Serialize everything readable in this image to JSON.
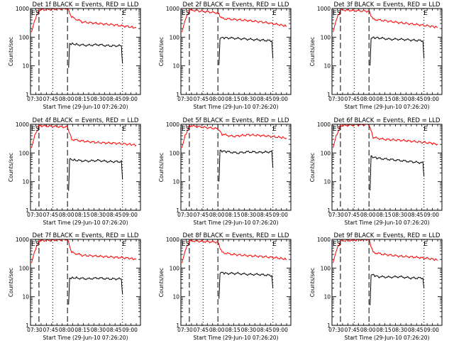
{
  "chart_data": [
    {
      "type": "line",
      "title": "Det 1f BLACK = Events, RED = LLD",
      "xlabel": "Start Time (29-Jun-10 07:26:20)",
      "ylabel": "Counts/sec",
      "y_scale": "log",
      "ylim": [
        1,
        1000
      ],
      "xlim": [
        "07:26",
        "09:10"
      ],
      "x_ticks": [
        "07:30",
        "07:45",
        "08:00",
        "08:15",
        "08:30",
        "08:45",
        "09:00"
      ],
      "y_ticks": [
        "1",
        "10",
        "100",
        "1000"
      ],
      "markers": [
        "E",
        "S",
        "E"
      ],
      "dashed_x": [
        "07:34",
        "08:01"
      ],
      "dotted_x": [
        "07:47",
        "08:53"
      ],
      "series": [
        {
          "color": "#ff0000",
          "x": [
            "07:27",
            "07:30",
            "07:33",
            "07:34",
            "08:01",
            "08:05",
            "08:15",
            "08:30",
            "08:45",
            "09:00",
            "09:06"
          ],
          "y": [
            150,
            400,
            700,
            900,
            1000,
            500,
            340,
            300,
            270,
            230,
            210
          ]
        },
        {
          "color": "#000000",
          "x": [
            "08:02",
            "08:03",
            "08:10",
            "08:20",
            "08:30",
            "08:40",
            "08:52",
            "08:53"
          ],
          "y": [
            8,
            60,
            55,
            52,
            55,
            50,
            50,
            12
          ]
        }
      ]
    },
    {
      "type": "line",
      "title": "Det 2f BLACK = Events, RED = LLD",
      "xlabel": "Start Time (29-Jun-10 07:26:20)",
      "ylabel": "Counts/sec",
      "y_scale": "log",
      "ylim": [
        1,
        1000
      ],
      "xlim": [
        "07:26",
        "09:10"
      ],
      "x_ticks": [
        "07:30",
        "07:45",
        "08:00",
        "08:15",
        "08:30",
        "08:45",
        "09:00"
      ],
      "y_ticks": [
        "1",
        "10",
        "100",
        "1000"
      ],
      "markers": [
        "E",
        "S",
        "E"
      ],
      "dashed_x": [
        "07:34",
        "08:01"
      ],
      "dotted_x": [
        "07:47",
        "08:53"
      ],
      "series": [
        {
          "color": "#ff0000",
          "x": [
            "07:27",
            "07:30",
            "07:33",
            "07:34",
            "08:01",
            "08:05",
            "08:15",
            "08:30",
            "08:45",
            "09:00",
            "09:06"
          ],
          "y": [
            150,
            400,
            700,
            900,
            700,
            450,
            420,
            380,
            330,
            270,
            240
          ]
        },
        {
          "color": "#000000",
          "x": [
            "08:02",
            "08:03",
            "08:10",
            "08:20",
            "08:30",
            "08:40",
            "08:52",
            "08:53"
          ],
          "y": [
            10,
            95,
            95,
            90,
            85,
            80,
            75,
            18
          ]
        }
      ]
    },
    {
      "type": "line",
      "title": "Det 3f BLACK = Events, RED = LLD",
      "xlabel": "Start Time (29-Jun-10 07:26:20)",
      "ylabel": "Counts/sec",
      "y_scale": "log",
      "ylim": [
        1,
        1000
      ],
      "xlim": [
        "07:26",
        "09:10"
      ],
      "x_ticks": [
        "07:30",
        "07:45",
        "08:00",
        "08:15",
        "08:30",
        "08:45",
        "09:00"
      ],
      "y_ticks": [
        "1",
        "10",
        "100",
        "1000"
      ],
      "markers": [
        "E",
        "S",
        "E"
      ],
      "dashed_x": [
        "07:34",
        "08:01"
      ],
      "dotted_x": [
        "07:47",
        "08:53"
      ],
      "series": [
        {
          "color": "#ff0000",
          "x": [
            "07:27",
            "07:30",
            "07:33",
            "07:34",
            "08:01",
            "08:05",
            "08:15",
            "08:30",
            "08:45",
            "09:00",
            "09:06"
          ],
          "y": [
            150,
            400,
            700,
            900,
            800,
            420,
            380,
            320,
            280,
            240,
            220
          ]
        },
        {
          "color": "#000000",
          "x": [
            "08:02",
            "08:03",
            "08:10",
            "08:20",
            "08:30",
            "08:40",
            "08:52",
            "08:53"
          ],
          "y": [
            10,
            95,
            95,
            85,
            85,
            80,
            75,
            18
          ]
        }
      ]
    },
    {
      "type": "line",
      "title": "Det 4f BLACK = Events, RED = LLD",
      "xlabel": "Start Time (29-Jun-10 07:26:20)",
      "ylabel": "Counts/sec",
      "y_scale": "log",
      "ylim": [
        1,
        1000
      ],
      "xlim": [
        "07:26",
        "09:10"
      ],
      "x_ticks": [
        "07:30",
        "07:45",
        "08:00",
        "08:15",
        "08:30",
        "08:45",
        "09:00"
      ],
      "y_ticks": [
        "1",
        "10",
        "100",
        "1000"
      ],
      "markers": [
        "E",
        "S",
        "E"
      ],
      "dashed_x": [
        "07:34",
        "08:01"
      ],
      "dotted_x": [
        "07:47",
        "08:53"
      ],
      "series": [
        {
          "color": "#ff0000",
          "x": [
            "07:27",
            "07:30",
            "07:33",
            "07:34",
            "08:01",
            "08:05",
            "08:15",
            "08:30",
            "08:45",
            "09:00",
            "09:06"
          ],
          "y": [
            150,
            400,
            700,
            900,
            800,
            300,
            260,
            230,
            220,
            200,
            190
          ]
        },
        {
          "color": "#000000",
          "x": [
            "08:02",
            "08:03",
            "08:10",
            "08:20",
            "08:30",
            "08:40",
            "08:52",
            "08:53"
          ],
          "y": [
            5,
            60,
            55,
            52,
            55,
            50,
            50,
            12
          ]
        }
      ]
    },
    {
      "type": "line",
      "title": "Det 5f BLACK = Events, RED = LLD",
      "xlabel": "Start Time (29-Jun-10 07:26:20)",
      "ylabel": "Counts/sec",
      "y_scale": "log",
      "ylim": [
        1,
        1000
      ],
      "xlim": [
        "07:26",
        "09:10"
      ],
      "x_ticks": [
        "07:30",
        "07:45",
        "08:00",
        "08:15",
        "08:30",
        "08:45",
        "09:00"
      ],
      "y_ticks": [
        "1",
        "10",
        "100",
        "1000"
      ],
      "markers": [
        "E",
        "S",
        "E"
      ],
      "dashed_x": [
        "07:34",
        "08:01"
      ],
      "dotted_x": [
        "07:47",
        "08:53"
      ],
      "series": [
        {
          "color": "#ff0000",
          "x": [
            "07:27",
            "07:30",
            "07:33",
            "07:34",
            "08:01",
            "08:05",
            "08:15",
            "08:30",
            "08:45",
            "09:00",
            "09:06"
          ],
          "y": [
            150,
            400,
            700,
            900,
            700,
            450,
            380,
            430,
            400,
            350,
            330
          ]
        },
        {
          "color": "#000000",
          "x": [
            "08:02",
            "08:03",
            "08:10",
            "08:20",
            "08:30",
            "08:40",
            "08:52",
            "08:53"
          ],
          "y": [
            10,
            120,
            110,
            100,
            110,
            105,
            110,
            30
          ]
        }
      ]
    },
    {
      "type": "line",
      "title": "Det 6f BLACK = Events, RED = LLD",
      "xlabel": "Start Time (29-Jun-10 07:26:20)",
      "ylabel": "Counts/sec",
      "y_scale": "log",
      "ylim": [
        1,
        1000
      ],
      "xlim": [
        "07:26",
        "09:10"
      ],
      "x_ticks": [
        "07:30",
        "07:45",
        "08:00",
        "08:15",
        "08:30",
        "08:45",
        "09:00"
      ],
      "y_ticks": [
        "1",
        "10",
        "100",
        "1000"
      ],
      "markers": [
        "E",
        "S",
        "E"
      ],
      "dashed_x": [
        "07:34",
        "08:01"
      ],
      "dotted_x": [
        "07:47",
        "08:53"
      ],
      "series": [
        {
          "color": "#ff0000",
          "x": [
            "07:27",
            "07:30",
            "07:33",
            "07:34",
            "08:01",
            "08:05",
            "08:15",
            "08:30",
            "08:45",
            "09:00",
            "09:06"
          ],
          "y": [
            150,
            400,
            700,
            900,
            1000,
            350,
            300,
            280,
            250,
            220,
            200
          ]
        },
        {
          "color": "#000000",
          "x": [
            "08:02",
            "08:03",
            "08:10",
            "08:20",
            "08:30",
            "08:40",
            "08:52",
            "08:53"
          ],
          "y": [
            5,
            75,
            65,
            60,
            55,
            50,
            45,
            15
          ]
        }
      ]
    },
    {
      "type": "line",
      "title": "Det 7f BLACK = Events, RED = LLD",
      "xlabel": "Start Time (29-Jun-10 07:26:20)",
      "ylabel": "Counts/sec",
      "y_scale": "log",
      "ylim": [
        1,
        1000
      ],
      "xlim": [
        "07:26",
        "09:10"
      ],
      "x_ticks": [
        "07:30",
        "07:45",
        "08:00",
        "08:15",
        "08:30",
        "08:45",
        "09:00"
      ],
      "y_ticks": [
        "1",
        "10",
        "100",
        "1000"
      ],
      "markers": [
        "E",
        "S",
        "E"
      ],
      "dashed_x": [
        "07:34",
        "08:01"
      ],
      "dotted_x": [
        "07:47",
        "08:53"
      ],
      "series": [
        {
          "color": "#ff0000",
          "x": [
            "07:27",
            "07:30",
            "07:33",
            "07:34",
            "08:01",
            "08:05",
            "08:15",
            "08:30",
            "08:45",
            "09:00",
            "09:06"
          ],
          "y": [
            150,
            400,
            700,
            900,
            1000,
            350,
            280,
            260,
            240,
            220,
            200
          ]
        },
        {
          "color": "#000000",
          "x": [
            "08:02",
            "08:03",
            "08:10",
            "08:20",
            "08:30",
            "08:40",
            "08:52",
            "08:53"
          ],
          "y": [
            5,
            45,
            45,
            42,
            45,
            42,
            42,
            12
          ]
        }
      ]
    },
    {
      "type": "line",
      "title": "Det 8f BLACK = Events, RED = LLD",
      "xlabel": "Start Time (29-Jun-10 07:26:20)",
      "ylabel": "Counts/sec",
      "y_scale": "log",
      "ylim": [
        1,
        1000
      ],
      "xlim": [
        "07:26",
        "09:10"
      ],
      "x_ticks": [
        "07:30",
        "07:45",
        "08:00",
        "08:15",
        "08:30",
        "08:45",
        "09:00"
      ],
      "y_ticks": [
        "1",
        "10",
        "100",
        "1000"
      ],
      "markers": [
        "E",
        "S",
        "E"
      ],
      "dashed_x": [
        "07:34",
        "08:01"
      ],
      "dotted_x": [
        "07:47",
        "08:53"
      ],
      "series": [
        {
          "color": "#ff0000",
          "x": [
            "07:27",
            "07:30",
            "07:33",
            "07:34",
            "08:01",
            "08:05",
            "08:15",
            "08:30",
            "08:45",
            "09:00",
            "09:06"
          ],
          "y": [
            150,
            400,
            700,
            900,
            800,
            350,
            300,
            270,
            250,
            220,
            200
          ]
        },
        {
          "color": "#000000",
          "x": [
            "08:02",
            "08:03",
            "08:10",
            "08:20",
            "08:30",
            "08:40",
            "08:52",
            "08:53"
          ],
          "y": [
            8,
            70,
            65,
            65,
            60,
            60,
            55,
            20
          ]
        }
      ]
    },
    {
      "type": "line",
      "title": "Det 9f BLACK = Events, RED = LLD",
      "xlabel": "Start Time (29-Jun-10 07:26:20)",
      "ylabel": "Counts/sec",
      "y_scale": "log",
      "ylim": [
        1,
        1000
      ],
      "xlim": [
        "07:26",
        "09:10"
      ],
      "x_ticks": [
        "07:30",
        "07:45",
        "08:00",
        "08:15",
        "08:30",
        "08:45",
        "09:00"
      ],
      "y_ticks": [
        "1",
        "10",
        "100",
        "1000"
      ],
      "markers": [
        "E",
        "S",
        "E"
      ],
      "dashed_x": [
        "07:34",
        "08:01"
      ],
      "dotted_x": [
        "07:47",
        "08:53"
      ],
      "series": [
        {
          "color": "#ff0000",
          "x": [
            "07:27",
            "07:30",
            "07:33",
            "07:34",
            "08:01",
            "08:05",
            "08:15",
            "08:30",
            "08:45",
            "09:00",
            "09:06"
          ],
          "y": [
            150,
            400,
            700,
            900,
            1000,
            350,
            300,
            260,
            240,
            210,
            190
          ]
        },
        {
          "color": "#000000",
          "x": [
            "08:02",
            "08:03",
            "08:10",
            "08:20",
            "08:30",
            "08:40",
            "08:52",
            "08:53"
          ],
          "y": [
            5,
            60,
            50,
            48,
            50,
            45,
            45,
            20
          ]
        }
      ]
    }
  ]
}
